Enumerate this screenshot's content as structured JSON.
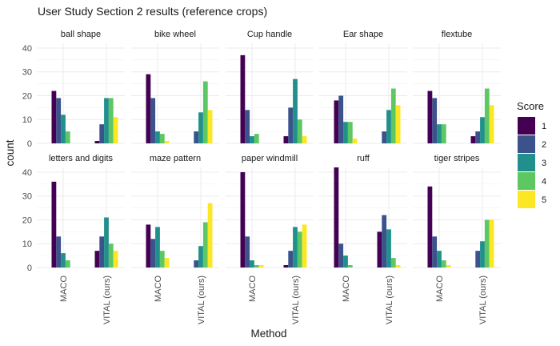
{
  "chart_data": {
    "type": "bar",
    "title": "User Study Section 2 results (reference crops)",
    "xlabel": "Method",
    "ylabel": "count",
    "ylim": [
      0,
      42
    ],
    "yticks": [
      0,
      10,
      20,
      30,
      40
    ],
    "categories": [
      "MACO",
      "VITAL (ours)"
    ],
    "legend": {
      "title": "Score",
      "position": "right",
      "items": [
        {
          "label": "1",
          "color": "#440154"
        },
        {
          "label": "2",
          "color": "#3b528b"
        },
        {
          "label": "3",
          "color": "#21908c"
        },
        {
          "label": "4",
          "color": "#5dc863"
        },
        {
          "label": "5",
          "color": "#fde725"
        }
      ]
    },
    "facets": [
      {
        "label": "ball shape",
        "values": [
          [
            22,
            19,
            12,
            5,
            0
          ],
          [
            1,
            8,
            19,
            19,
            11
          ]
        ]
      },
      {
        "label": "bike wheel",
        "values": [
          [
            29,
            19,
            5,
            4,
            1
          ],
          [
            0,
            5,
            13,
            26,
            14
          ]
        ]
      },
      {
        "label": "Cup handle",
        "values": [
          [
            37,
            14,
            3,
            4,
            0
          ],
          [
            3,
            15,
            27,
            10,
            3
          ]
        ]
      },
      {
        "label": "Ear shape",
        "values": [
          [
            18,
            20,
            9,
            9,
            2
          ],
          [
            0,
            5,
            14,
            23,
            16
          ]
        ]
      },
      {
        "label": "flextube",
        "values": [
          [
            22,
            19,
            8,
            8,
            0
          ],
          [
            3,
            5,
            11,
            23,
            16
          ]
        ]
      },
      {
        "label": "letters and digits",
        "values": [
          [
            36,
            13,
            6,
            3,
            0
          ],
          [
            7,
            13,
            21,
            10,
            7
          ]
        ]
      },
      {
        "label": "maze pattern",
        "values": [
          [
            18,
            12,
            17,
            7,
            4
          ],
          [
            0,
            3,
            9,
            19,
            27
          ]
        ]
      },
      {
        "label": "paper windmill",
        "values": [
          [
            40,
            13,
            3,
            1,
            1
          ],
          [
            1,
            7,
            17,
            15,
            18
          ]
        ]
      },
      {
        "label": "ruff",
        "values": [
          [
            42,
            10,
            5,
            1,
            0
          ],
          [
            15,
            22,
            16,
            4,
            1
          ]
        ]
      },
      {
        "label": "tiger stripes",
        "values": [
          [
            34,
            13,
            7,
            3,
            1
          ],
          [
            0,
            7,
            11,
            20,
            20
          ]
        ]
      }
    ]
  }
}
